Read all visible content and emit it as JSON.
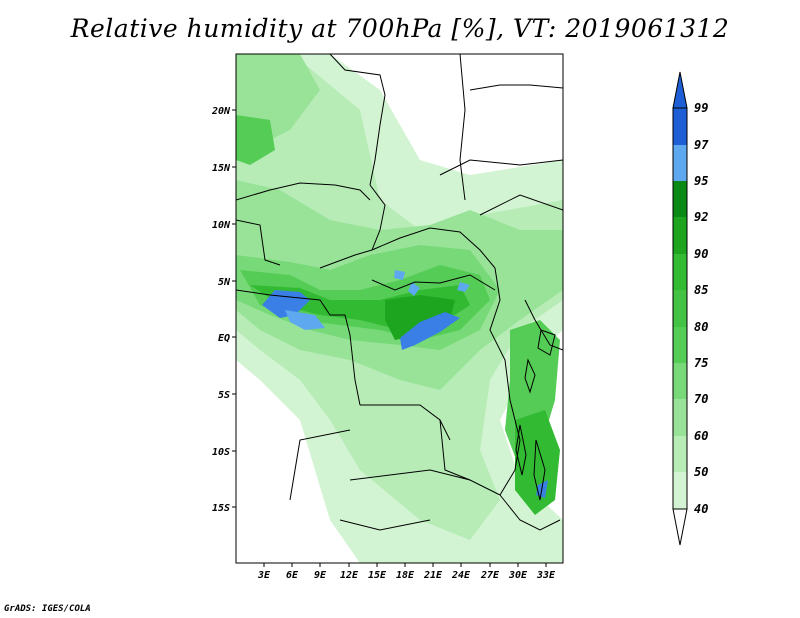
{
  "title": "Relative humidity at 700hPa [%], VT: 2019061312",
  "credit": "GrADS: IGES/COLA",
  "map": {
    "lat_labels": [
      "20N",
      "15N",
      "10N",
      "5N",
      "EQ",
      "5S",
      "10S",
      "15S"
    ],
    "lon_labels": [
      "3E",
      "6E",
      "9E",
      "12E",
      "15E",
      "18E",
      "21E",
      "24E",
      "27E",
      "30E",
      "33E"
    ]
  },
  "colorbar": {
    "labels": [
      "99",
      "97",
      "95",
      "92",
      "90",
      "85",
      "80",
      "75",
      "70",
      "60",
      "50",
      "40"
    ],
    "colors": [
      "#1f5fd6",
      "#3a7fe6",
      "#5ea8f0",
      "#0a8a14",
      "#1da51f",
      "#33ba33",
      "#55cc55",
      "#77d977",
      "#99e399",
      "#b7ecb7",
      "#d2f4d2",
      "#ecfbec"
    ],
    "top_arrow_color": "#1f5fd6",
    "bottom_arrow_color": "#ffffff"
  }
}
